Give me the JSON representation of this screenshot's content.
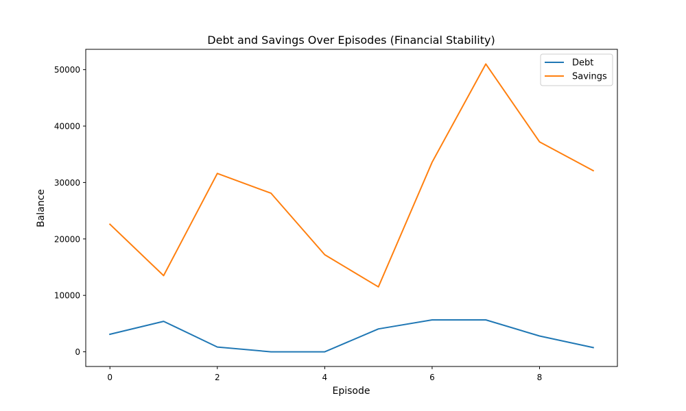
{
  "chart_data": {
    "type": "line",
    "title": "Debt and Savings Over Episodes (Financial Stability)",
    "xlabel": "Episode",
    "ylabel": "Balance",
    "x": [
      0,
      1,
      2,
      3,
      4,
      5,
      6,
      7,
      8,
      9
    ],
    "xlim": [
      -0.45,
      9.45
    ],
    "ylim": [
      -2600,
      53600
    ],
    "xticks": [
      0,
      2,
      4,
      6,
      8
    ],
    "yticks": [
      0,
      10000,
      20000,
      30000,
      40000,
      50000
    ],
    "grid": false,
    "legend_position": "top-right",
    "series": [
      {
        "name": "Debt",
        "color": "#1f77b4",
        "values": [
          3100,
          5400,
          850,
          0,
          0,
          4050,
          5650,
          5650,
          2800,
          750
        ]
      },
      {
        "name": "Savings",
        "color": "#ff7f0e",
        "values": [
          22600,
          13500,
          31600,
          28100,
          17200,
          11500,
          33600,
          51000,
          37200,
          32100
        ]
      }
    ]
  }
}
